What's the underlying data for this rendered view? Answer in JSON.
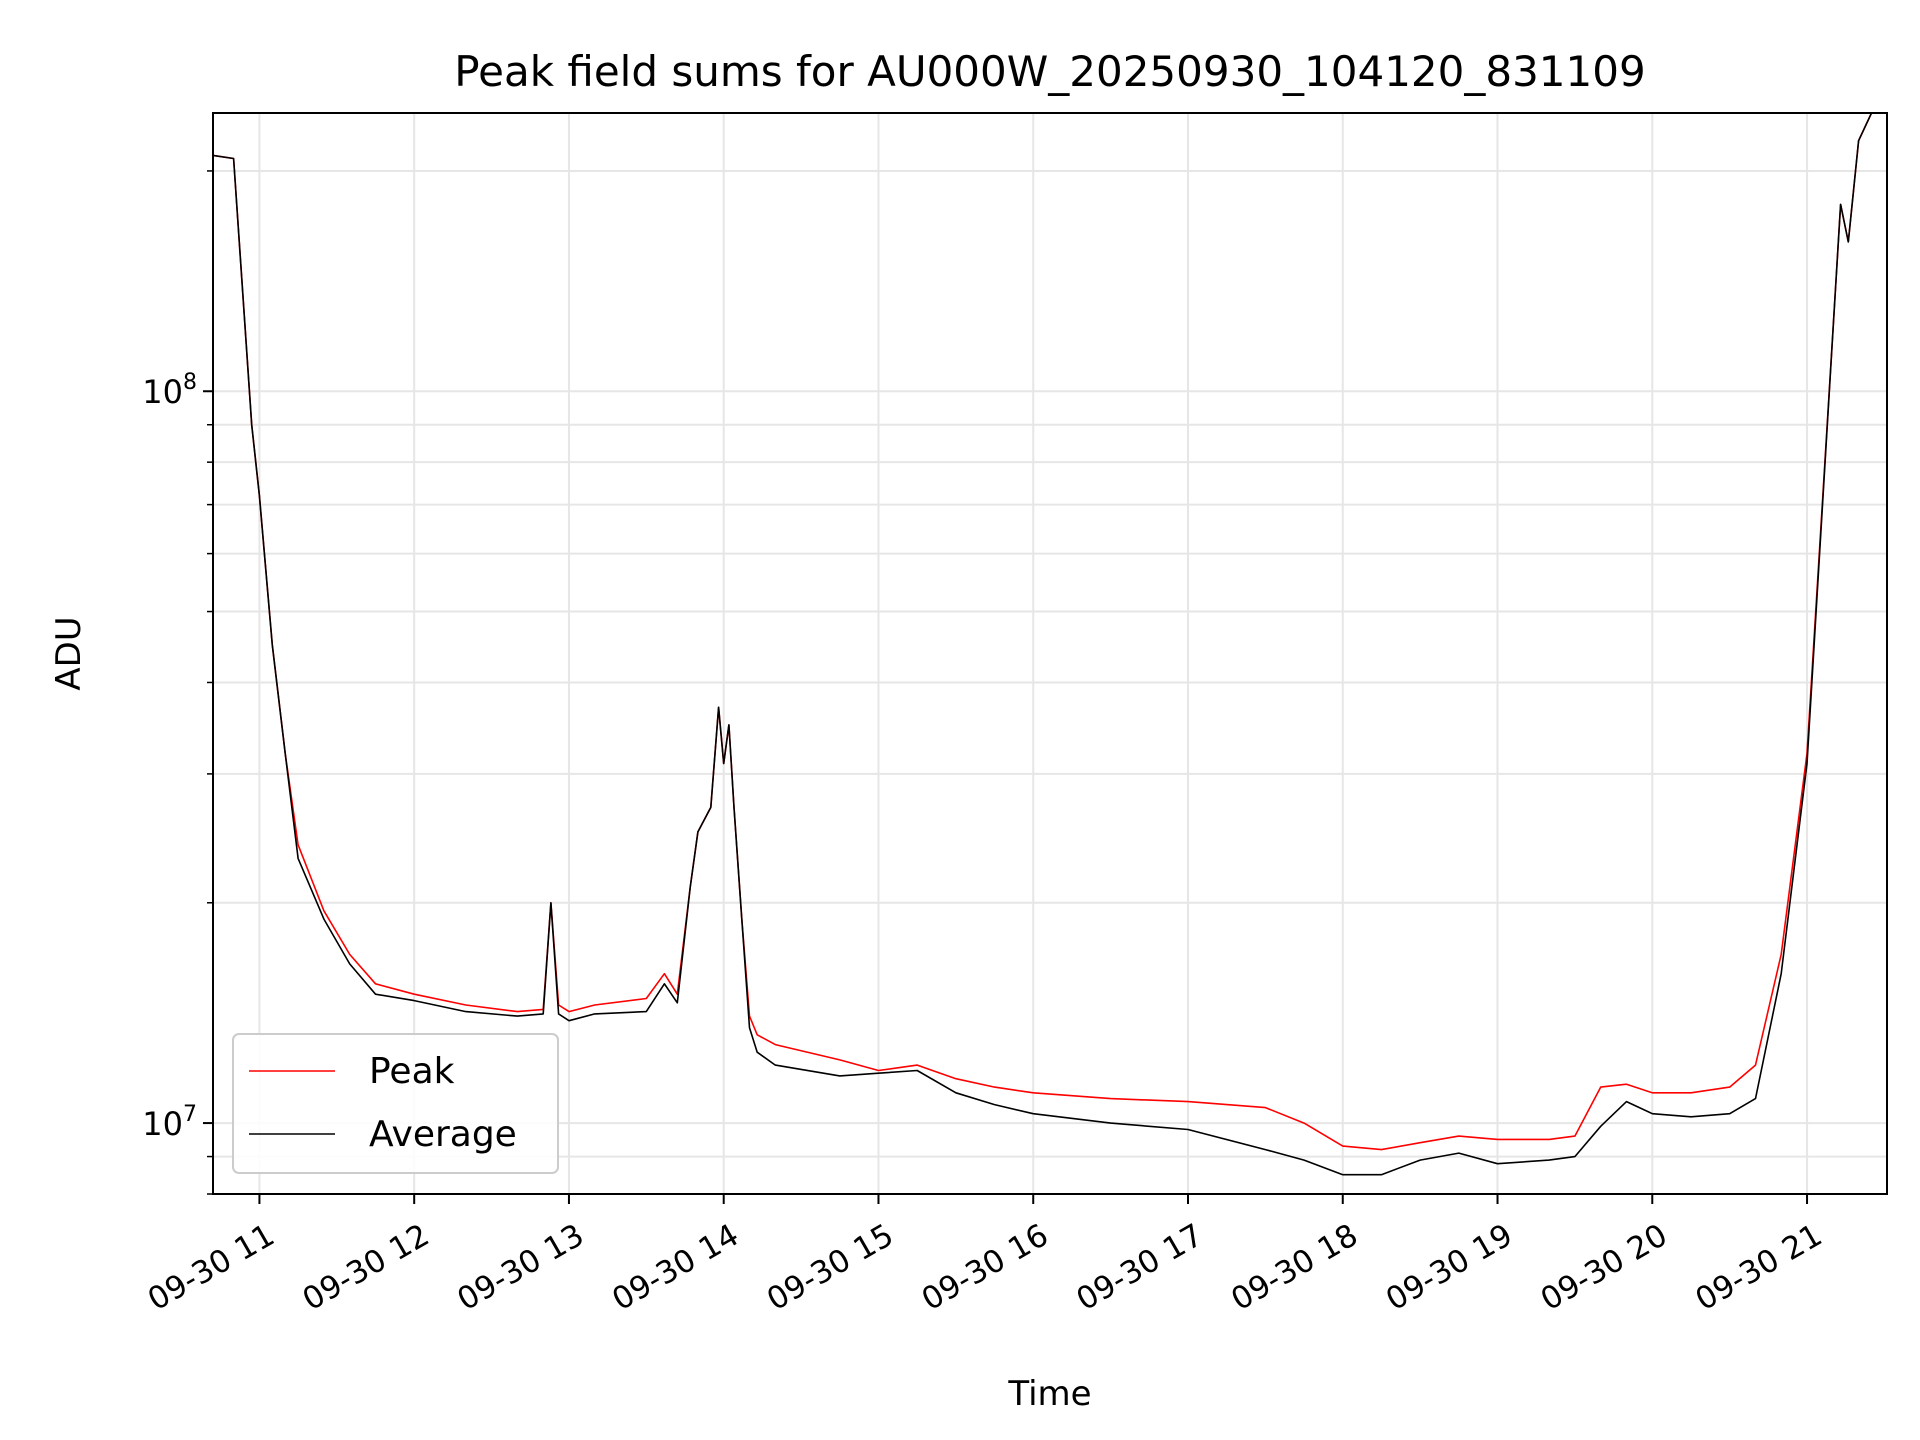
{
  "chart_data": {
    "type": "line",
    "title": "Peak field sums for AU000W_20250930_104120_831109",
    "xlabel": "Time",
    "ylabel": "ADU",
    "y_scale": "log",
    "ylim": [
      8000000,
      240000000
    ],
    "xlim": [
      "2025-09-30 10:42",
      "2025-09-30 21:31"
    ],
    "grid": true,
    "legend_position": "lower-left",
    "x_tick_labels": [
      "09-30 11",
      "09-30 12",
      "09-30 13",
      "09-30 14",
      "09-30 15",
      "09-30 16",
      "09-30 17",
      "09-30 18",
      "09-30 19",
      "09-30 20",
      "09-30 21"
    ],
    "y_tick_labels": [
      {
        "value": 10000000,
        "base": "10",
        "exp": "7"
      },
      {
        "value": 100000000,
        "base": "10",
        "exp": "8"
      }
    ],
    "x": [
      "2025-09-30 10:42",
      "2025-09-30 10:50",
      "2025-09-30 10:57",
      "2025-09-30 11:00",
      "2025-09-30 11:05",
      "2025-09-30 11:10",
      "2025-09-30 11:15",
      "2025-09-30 11:25",
      "2025-09-30 11:35",
      "2025-09-30 11:45",
      "2025-09-30 12:00",
      "2025-09-30 12:20",
      "2025-09-30 12:40",
      "2025-09-30 12:50",
      "2025-09-30 12:53",
      "2025-09-30 12:56",
      "2025-09-30 13:00",
      "2025-09-30 13:10",
      "2025-09-30 13:30",
      "2025-09-30 13:37",
      "2025-09-30 13:42",
      "2025-09-30 13:47",
      "2025-09-30 13:50",
      "2025-09-30 13:55",
      "2025-09-30 13:58",
      "2025-09-30 14:00",
      "2025-09-30 14:02",
      "2025-09-30 14:04",
      "2025-09-30 14:07",
      "2025-09-30 14:10",
      "2025-09-30 14:13",
      "2025-09-30 14:20",
      "2025-09-30 14:45",
      "2025-09-30 15:00",
      "2025-09-30 15:15",
      "2025-09-30 15:30",
      "2025-09-30 15:45",
      "2025-09-30 16:00",
      "2025-09-30 16:30",
      "2025-09-30 17:00",
      "2025-09-30 17:30",
      "2025-09-30 17:45",
      "2025-09-30 18:00",
      "2025-09-30 18:15",
      "2025-09-30 18:30",
      "2025-09-30 18:45",
      "2025-09-30 19:00",
      "2025-09-30 19:20",
      "2025-09-30 19:30",
      "2025-09-30 19:40",
      "2025-09-30 19:50",
      "2025-09-30 20:00",
      "2025-09-30 20:15",
      "2025-09-30 20:30",
      "2025-09-30 20:40",
      "2025-09-30 20:50",
      "2025-09-30 21:00",
      "2025-09-30 21:10",
      "2025-09-30 21:13",
      "2025-09-30 21:16",
      "2025-09-30 21:20",
      "2025-09-30 21:25"
    ],
    "series": [
      {
        "name": "Peak",
        "color": "#ff0000",
        "values": [
          210000000,
          208000000,
          90000000,
          72000000,
          45000000,
          32000000,
          24000000,
          19500000,
          17000000,
          15500000,
          15000000,
          14500000,
          14200000,
          14300000,
          20000000,
          14500000,
          14200000,
          14500000,
          14800000,
          16000000,
          15000000,
          21000000,
          25000000,
          27000000,
          37000000,
          31000000,
          35000000,
          27000000,
          19000000,
          14000000,
          13200000,
          12800000,
          12200000,
          11800000,
          12000000,
          11500000,
          11200000,
          11000000,
          10800000,
          10700000,
          10500000,
          10000000,
          9300000,
          9200000,
          9400000,
          9600000,
          9500000,
          9500000,
          9600000,
          11200000,
          11300000,
          11000000,
          11000000,
          11200000,
          12000000,
          17000000,
          32000000,
          120000000,
          180000000,
          160000000,
          220000000,
          240000000
        ]
      },
      {
        "name": "Average",
        "color": "#000000",
        "values": [
          210000000,
          208000000,
          90000000,
          72000000,
          45000000,
          32000000,
          23000000,
          19000000,
          16500000,
          15000000,
          14700000,
          14200000,
          14000000,
          14100000,
          20000000,
          14100000,
          13800000,
          14100000,
          14200000,
          15500000,
          14600000,
          21000000,
          25000000,
          27000000,
          37000000,
          31000000,
          35000000,
          27000000,
          19000000,
          13500000,
          12500000,
          12000000,
          11600000,
          11700000,
          11800000,
          11000000,
          10600000,
          10300000,
          10000000,
          9800000,
          9200000,
          8900000,
          8500000,
          8500000,
          8900000,
          9100000,
          8800000,
          8900000,
          9000000,
          9900000,
          10700000,
          10300000,
          10200000,
          10300000,
          10800000,
          16000000,
          31000000,
          120000000,
          180000000,
          160000000,
          220000000,
          240000000
        ]
      }
    ]
  }
}
